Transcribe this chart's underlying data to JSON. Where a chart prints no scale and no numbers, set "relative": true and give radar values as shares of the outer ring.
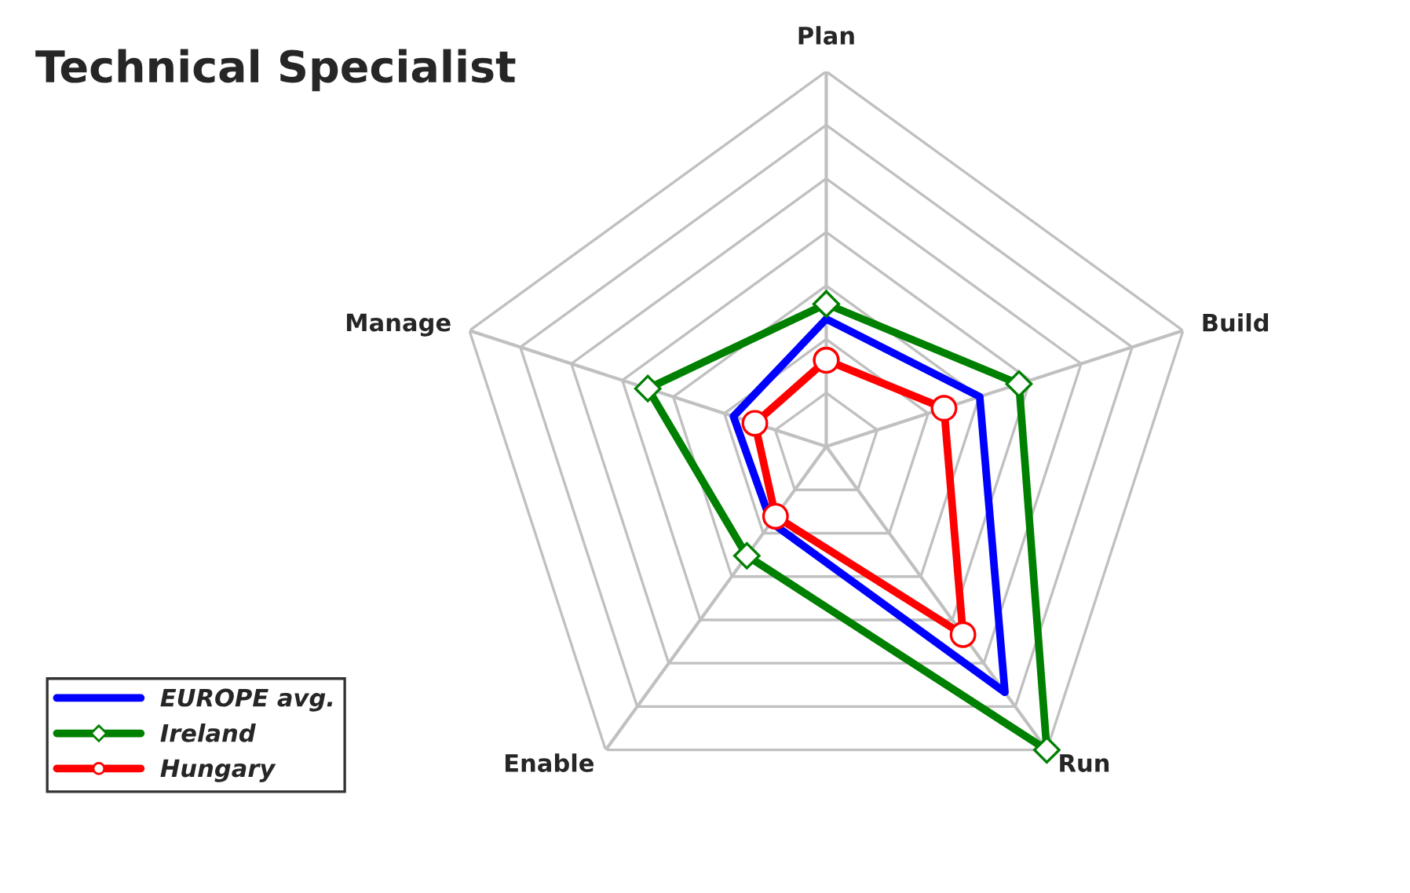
{
  "chart_data": {
    "type": "radar",
    "title": "Technical Specialist",
    "relative": true,
    "grid": true,
    "legend": "bottom left",
    "categories": [
      "Plan",
      "Build",
      "Run",
      "Enable",
      "Manage"
    ],
    "series": [
      {
        "name": "EUROPE avg.",
        "color": "#0000ff",
        "marker": "none",
        "values": [
          0.34,
          0.43,
          0.81,
          0.25,
          0.26
        ]
      },
      {
        "name": "Ireland",
        "color": "#008000",
        "marker": "diamond",
        "values": [
          0.38,
          0.54,
          1.0,
          0.36,
          0.5
        ]
      },
      {
        "name": "Hungary",
        "color": "#ff0000",
        "marker": "circle",
        "values": [
          0.23,
          0.33,
          0.62,
          0.23,
          0.2
        ]
      }
    ]
  }
}
